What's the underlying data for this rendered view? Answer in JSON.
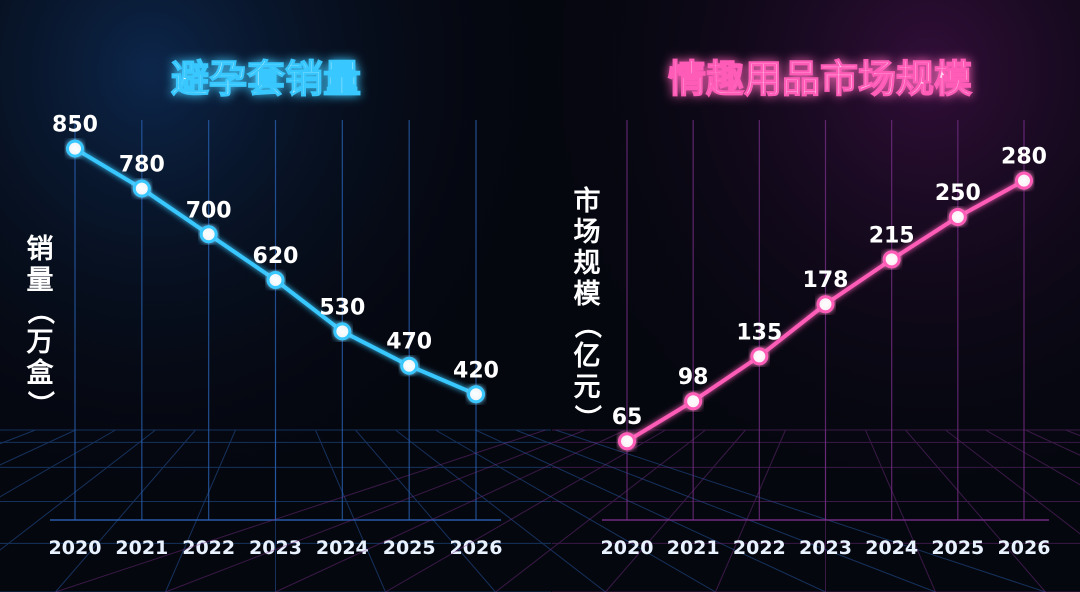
{
  "chart_data": [
    {
      "type": "line",
      "title": "避孕套销量",
      "ylabel": "销量（万盒）",
      "xlabel": "",
      "categories": [
        "2020",
        "2021",
        "2022",
        "2023",
        "2024",
        "2025",
        "2026"
      ],
      "series": [
        {
          "values": [
            850,
            780,
            700,
            620,
            530,
            470,
            420
          ]
        }
      ],
      "data_labels": [
        "850",
        "780",
        "700",
        "620",
        "530",
        "470",
        "420"
      ],
      "ylim": [
        200,
        900
      ],
      "grid": true,
      "legend": "none",
      "color": "#38c8ff",
      "title_color": "#dff6ff"
    },
    {
      "type": "line",
      "title": "情趣用品市场规模",
      "ylabel": "市场规模（亿元）",
      "xlabel": "",
      "categories": [
        "2020",
        "2021",
        "2022",
        "2023",
        "2024",
        "2025",
        "2026"
      ],
      "series": [
        {
          "values": [
            65,
            98,
            135,
            178,
            215,
            250,
            280
          ]
        }
      ],
      "data_labels": [
        "65",
        "98",
        "135",
        "178",
        "215",
        "250",
        "280"
      ],
      "ylim": [
        0,
        330
      ],
      "grid": true,
      "legend": "none",
      "color": "#ff5cb8",
      "title_color": "#ffd6ef"
    }
  ],
  "divider_color": "#3aa0ff"
}
